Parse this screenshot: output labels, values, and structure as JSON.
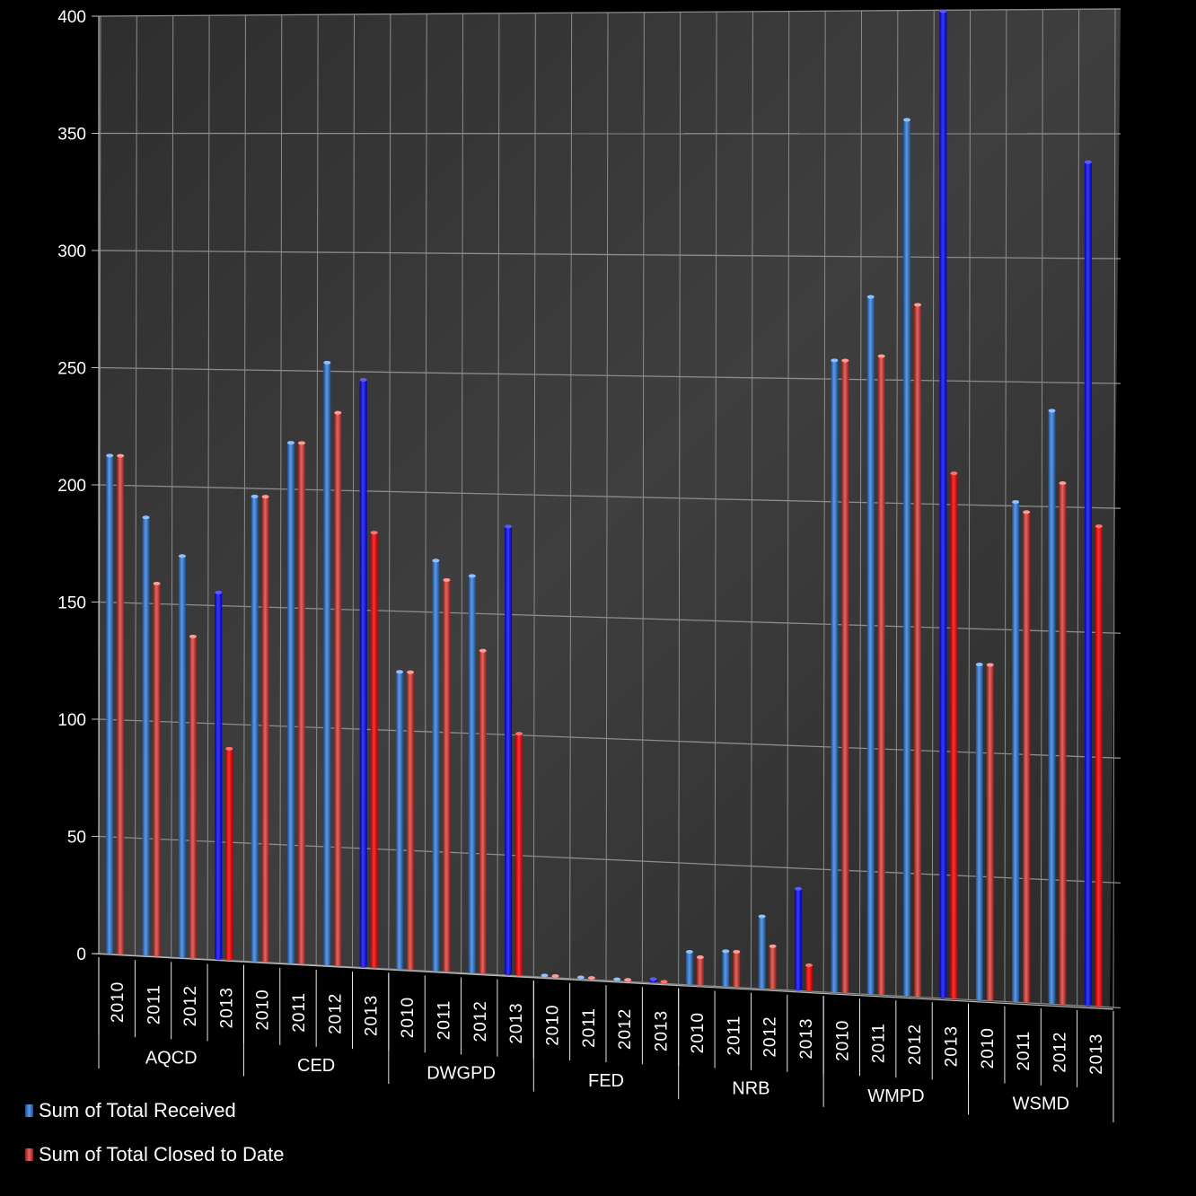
{
  "chart_data": {
    "type": "bar",
    "groups": [
      "AQCD",
      "CED",
      "DWGPD",
      "FED",
      "NRB",
      "WMPD",
      "WSMD"
    ],
    "years": [
      "2010",
      "2011",
      "2012",
      "2013"
    ],
    "yticks": [
      "0",
      "50",
      "100",
      "150",
      "200",
      "250",
      "300",
      "350",
      "400"
    ],
    "ylim": [
      0,
      400
    ],
    "grid": true,
    "legend_position": "bottom-left",
    "series": [
      {
        "name": "Sum of Total Received",
        "color": "#3d7fd6",
        "highlight_color": "#1414ff",
        "values": [
          [
            213,
            187,
            171,
            156
          ],
          [
            197,
            220,
            254,
            247
          ],
          [
            125,
            172,
            166,
            187
          ],
          [
            0,
            0,
            0,
            2
          ],
          [
            14,
            15,
            30,
            42
          ],
          [
            258,
            284,
            356,
            400
          ],
          [
            136,
            202,
            239,
            339
          ]
        ]
      },
      {
        "name": "Sum of Total Closed to Date",
        "color": "#d9413b",
        "highlight_color": "#ff1010",
        "values": [
          [
            213,
            159,
            137,
            90
          ],
          [
            197,
            220,
            233,
            183
          ],
          [
            125,
            164,
            135,
            101
          ],
          [
            0,
            0,
            0,
            0
          ],
          [
            12,
            15,
            18,
            11
          ],
          [
            258,
            260,
            281,
            213
          ],
          [
            136,
            198,
            210,
            193
          ]
        ]
      }
    ]
  }
}
